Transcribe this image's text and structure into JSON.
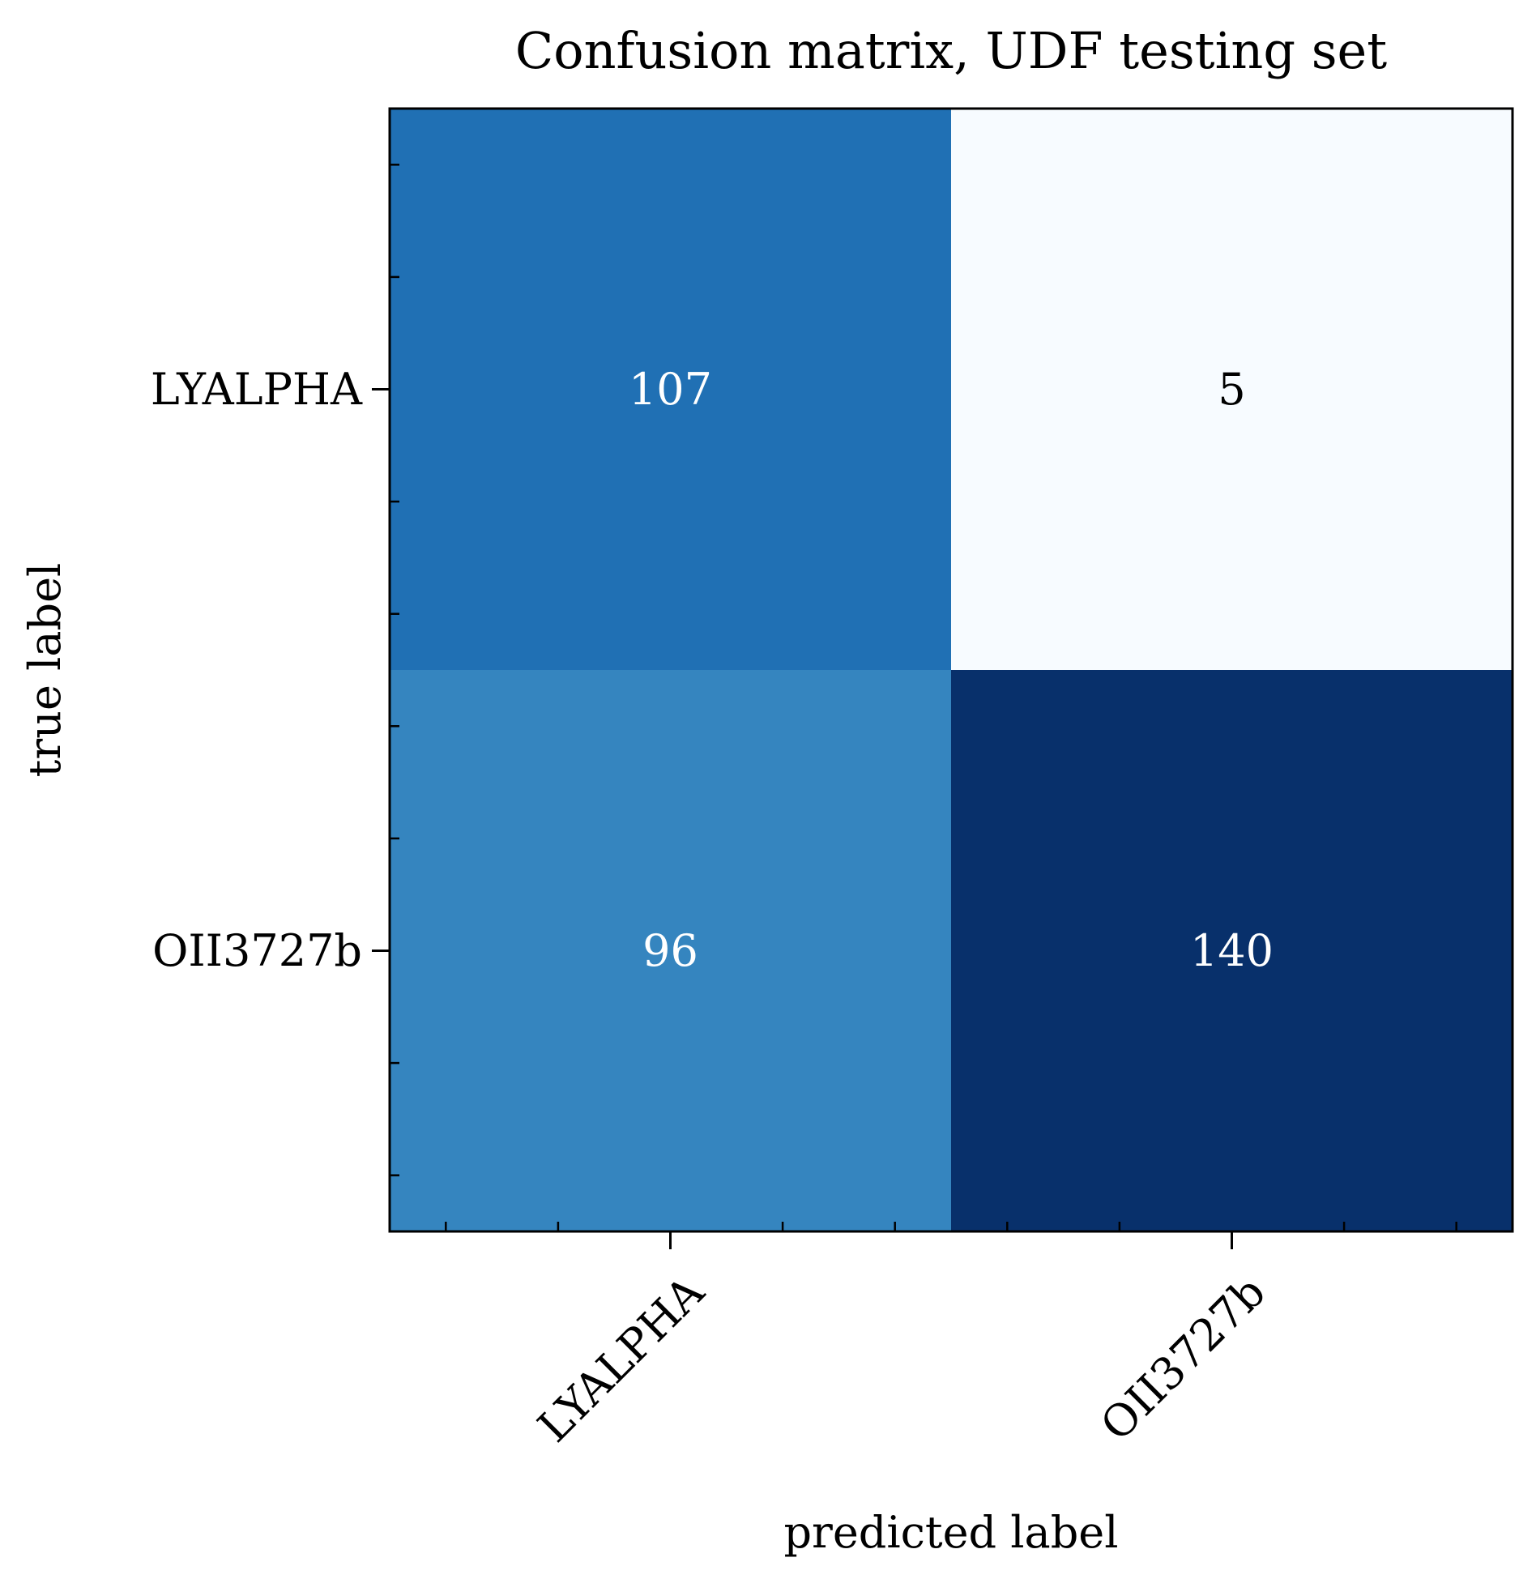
{
  "chart_data": {
    "type": "heatmap",
    "title": "Confusion matrix, UDF testing set",
    "xlabel": "predicted label",
    "ylabel": "true label",
    "x_categories": [
      "LYALPHA",
      "OII3727b"
    ],
    "y_categories": [
      "LYALPHA",
      "OII3727b"
    ],
    "values": [
      [
        107,
        5
      ],
      [
        96,
        140
      ]
    ],
    "colormap": "Blues",
    "colors": {
      "low": "#f7fbff",
      "high": "#08306b",
      "text_dark": "#000000",
      "text_light": "#ffffff"
    },
    "grid": false,
    "legend": "none"
  }
}
